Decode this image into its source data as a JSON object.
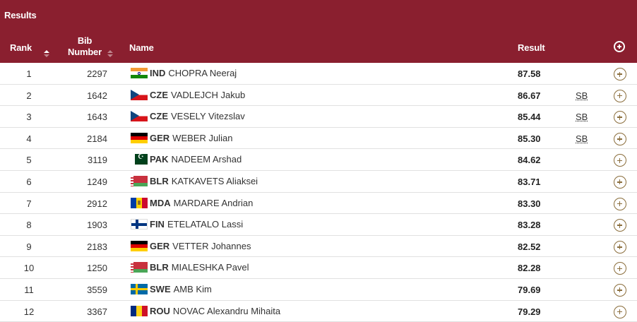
{
  "header": {
    "title": "Results",
    "columns": {
      "rank": "Rank",
      "bib": "Bib Number",
      "name": "Name",
      "result": "Result"
    }
  },
  "colors": {
    "header_bg": "#8a1f2f",
    "expand_icon": "#8a6d3b"
  },
  "rows": [
    {
      "rank": "1",
      "bib": "2297",
      "noc": "IND",
      "name": "CHOPRA Neeraj",
      "result": "87.58",
      "record": ""
    },
    {
      "rank": "2",
      "bib": "1642",
      "noc": "CZE",
      "name": "VADLEJCH Jakub",
      "result": "86.67",
      "record": "SB"
    },
    {
      "rank": "3",
      "bib": "1643",
      "noc": "CZE",
      "name": "VESELY Vitezslav",
      "result": "85.44",
      "record": "SB"
    },
    {
      "rank": "4",
      "bib": "2184",
      "noc": "GER",
      "name": "WEBER Julian",
      "result": "85.30",
      "record": "SB"
    },
    {
      "rank": "5",
      "bib": "3119",
      "noc": "PAK",
      "name": "NADEEM Arshad",
      "result": "84.62",
      "record": ""
    },
    {
      "rank": "6",
      "bib": "1249",
      "noc": "BLR",
      "name": "KATKAVETS Aliaksei",
      "result": "83.71",
      "record": ""
    },
    {
      "rank": "7",
      "bib": "2912",
      "noc": "MDA",
      "name": "MARDARE Andrian",
      "result": "83.30",
      "record": ""
    },
    {
      "rank": "8",
      "bib": "1903",
      "noc": "FIN",
      "name": "ETELATALO Lassi",
      "result": "83.28",
      "record": ""
    },
    {
      "rank": "9",
      "bib": "2183",
      "noc": "GER",
      "name": "VETTER Johannes",
      "result": "82.52",
      "record": ""
    },
    {
      "rank": "10",
      "bib": "1250",
      "noc": "BLR",
      "name": "MIALESHKA Pavel",
      "result": "82.28",
      "record": ""
    },
    {
      "rank": "11",
      "bib": "3559",
      "noc": "SWE",
      "name": "AMB Kim",
      "result": "79.69",
      "record": ""
    },
    {
      "rank": "12",
      "bib": "3367",
      "noc": "ROU",
      "name": "NOVAC Alexandru Mihaita",
      "result": "79.29",
      "record": ""
    }
  ]
}
